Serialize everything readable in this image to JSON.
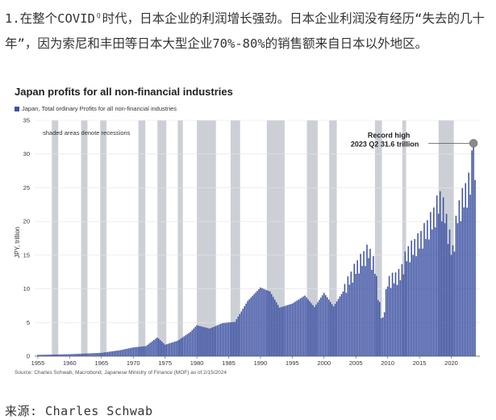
{
  "intro": {
    "line1_prefix": "1.在整个COVID",
    "line1_rest": "时代，日本企业的利润增长强劲。日本企业利润没有经历“失去的几十年”，因为索尼和丰田等日本大型企业70%-80%的销售额来自日本以外地区。",
    "hint_icon": "Q"
  },
  "footer": {
    "source": "来源: Charles Schwab"
  },
  "chart_data": {
    "type": "bar",
    "title": "Japan profits for all non-financial industries",
    "legend": [
      "Japan, Total ordinary Profits for all non-financial industries"
    ],
    "ylabel": "JPY, trillion",
    "xlabel": "",
    "ylim": [
      0,
      35
    ],
    "yticks": [
      0,
      5,
      10,
      15,
      20,
      25,
      30,
      35
    ],
    "xlim": [
      1954.5,
      2024.5
    ],
    "xticks": [
      1955,
      1960,
      1965,
      1970,
      1975,
      1980,
      1985,
      1990,
      1995,
      2000,
      2005,
      2010,
      2015,
      2020
    ],
    "recessions": [
      [
        1957.2,
        1958.2
      ],
      [
        1961.8,
        1962.8
      ],
      [
        1964.8,
        1965.8
      ],
      [
        1970.8,
        1971.9
      ],
      [
        1973.8,
        1975.2
      ],
      [
        1977.0,
        1977.8
      ],
      [
        1980.0,
        1983.0
      ],
      [
        1985.3,
        1986.8
      ],
      [
        1991.0,
        1993.8
      ],
      [
        1997.3,
        1999.0
      ],
      [
        2000.8,
        2002.0
      ],
      [
        2008.0,
        2009.1
      ],
      [
        2012.3,
        2012.9
      ],
      [
        2018.0,
        2020.4
      ]
    ],
    "recession_note": "shaded areas denote recessions",
    "series_color": "#3e52a3",
    "anchors": [
      [
        1955,
        0.2
      ],
      [
        1960,
        0.3
      ],
      [
        1965,
        0.5
      ],
      [
        1968,
        0.9
      ],
      [
        1970,
        1.3
      ],
      [
        1972,
        1.5
      ],
      [
        1973.8,
        2.8
      ],
      [
        1975,
        1.7
      ],
      [
        1977,
        2.3
      ],
      [
        1979,
        3.6
      ],
      [
        1980,
        4.6
      ],
      [
        1982,
        4.1
      ],
      [
        1984,
        4.9
      ],
      [
        1986,
        5.1
      ],
      [
        1988,
        8.2
      ],
      [
        1990,
        10.2
      ],
      [
        1991.5,
        9.6
      ],
      [
        1993,
        7.2
      ],
      [
        1995,
        7.8
      ],
      [
        1997,
        9.0
      ],
      [
        1998.5,
        7.3
      ],
      [
        2000,
        9.4
      ],
      [
        2001.5,
        7.4
      ],
      [
        2003,
        9.6
      ],
      [
        2005,
        13.0
      ],
      [
        2007,
        15.5
      ],
      [
        2008,
        13.0
      ],
      [
        2008.8,
        7.0
      ],
      [
        2009.2,
        5.0
      ],
      [
        2010,
        11.0
      ],
      [
        2012,
        12.0
      ],
      [
        2013,
        15.0
      ],
      [
        2015,
        17.0
      ],
      [
        2017,
        20.0
      ],
      [
        2018.2,
        23.0
      ],
      [
        2019,
        21.0
      ],
      [
        2020.2,
        15.0
      ],
      [
        2021,
        21.0
      ],
      [
        2022,
        23.5
      ],
      [
        2023,
        25.5
      ],
      [
        2023.5,
        31.6
      ],
      [
        2023.75,
        24.0
      ]
    ],
    "annotation": {
      "x": 2023.5,
      "y": 31.6,
      "line1": "Record high",
      "line2": "2023 Q2 31.6 trillion"
    },
    "source": "Source: Charles Schwab, Macrobond, Japanese Ministry of Finance (MOF) as of 2/15/2024"
  }
}
